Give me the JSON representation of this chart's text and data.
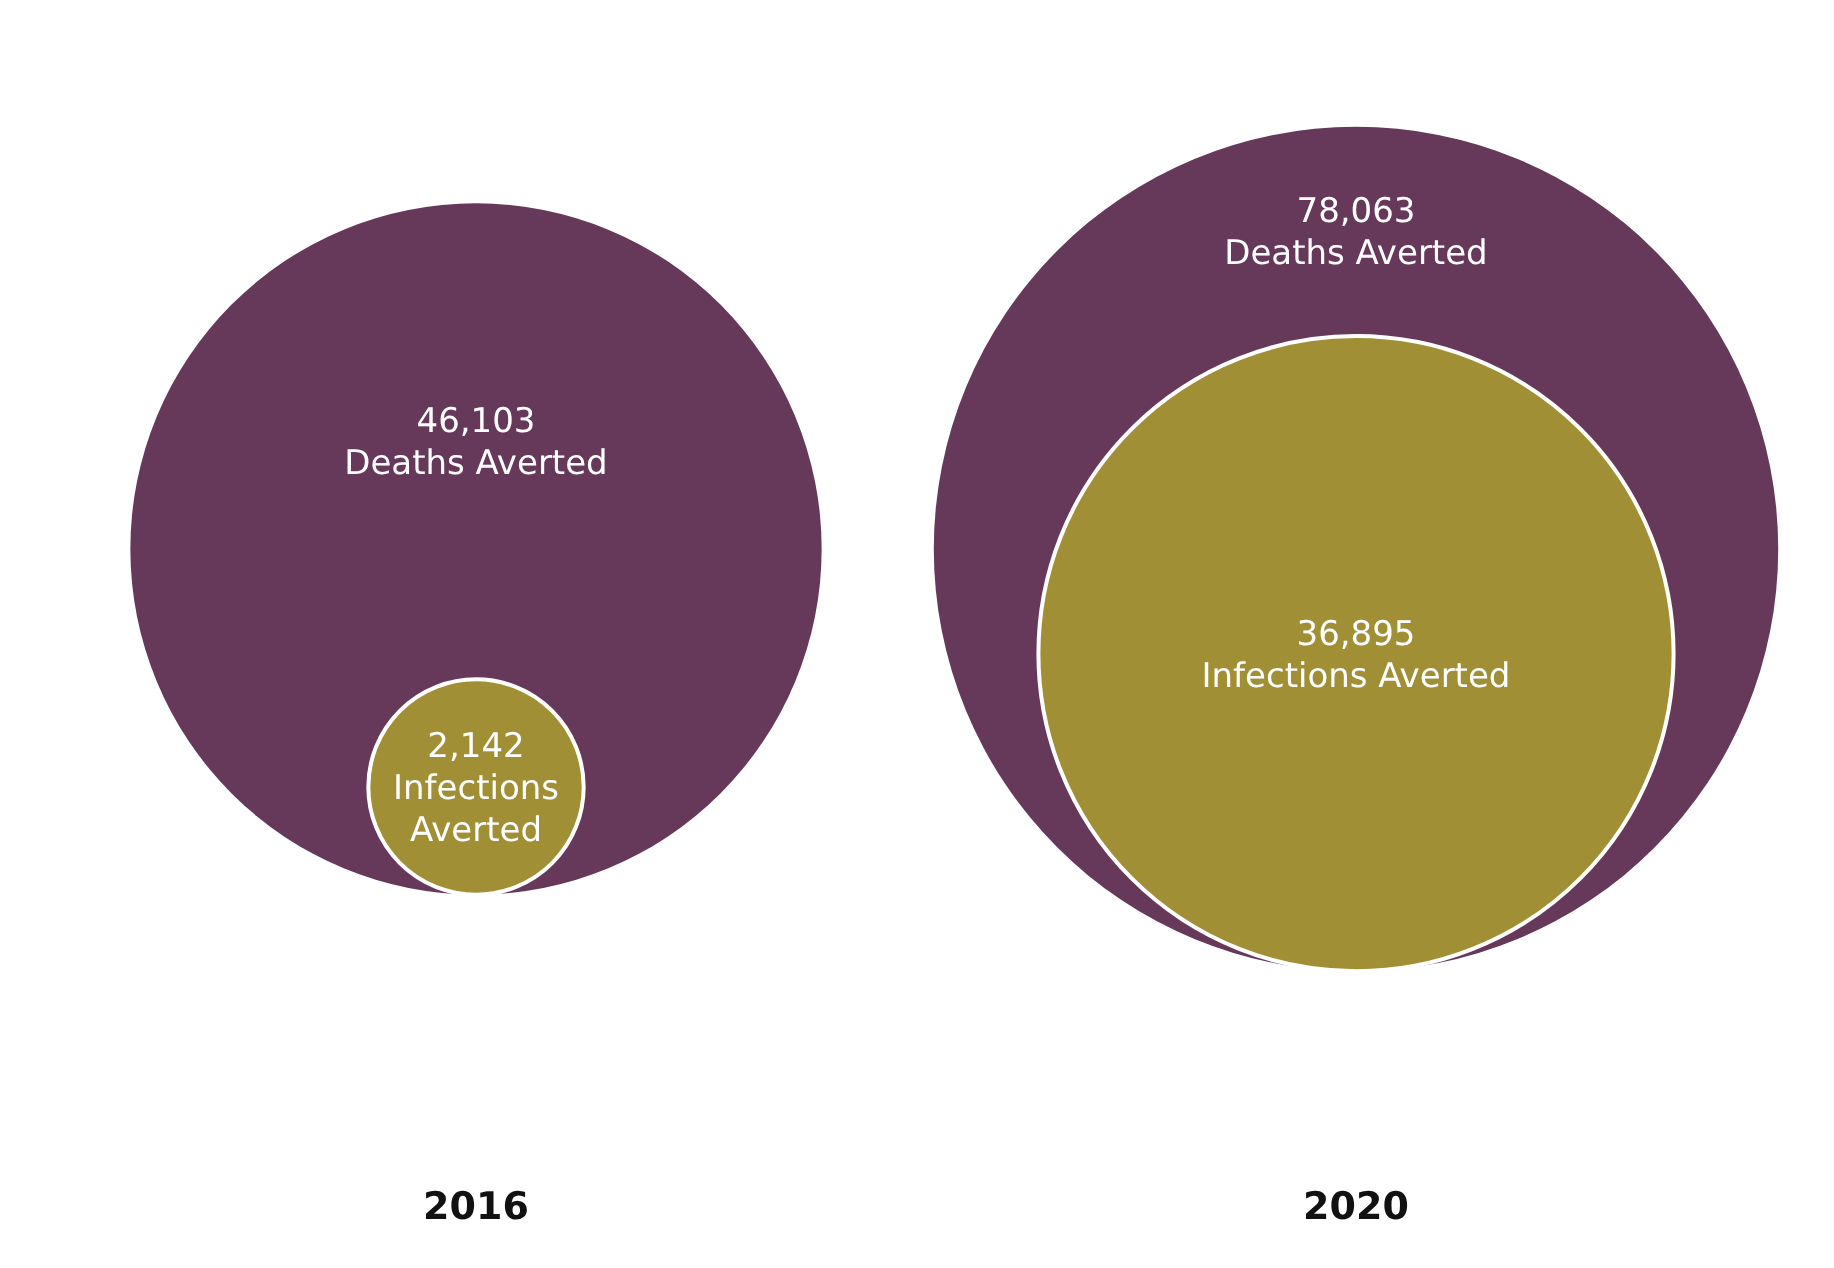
{
  "chart_data": {
    "type": "other",
    "categories": [
      "2016",
      "2020"
    ],
    "series": [
      {
        "name": "Deaths Averted",
        "color": "#663859",
        "values": [
          46103,
          78063
        ],
        "value_labels": [
          "46,103",
          "78,063"
        ]
      },
      {
        "name": "Infections Averted",
        "color": "#a08f35",
        "values": [
          2142,
          36895
        ],
        "value_labels": [
          "2,142",
          "36,895"
        ]
      }
    ]
  }
}
